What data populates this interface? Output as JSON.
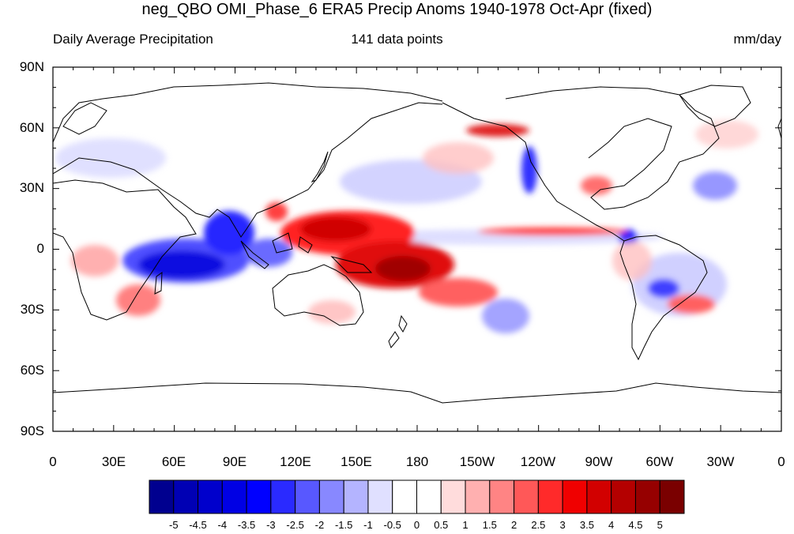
{
  "title": "neg_QBO OMI_Phase_6 ERA5 Precip Anoms 1940-1978 Oct-Apr (fixed)",
  "subtitle_left": "Daily Average Precipitation",
  "subtitle_center": "141 data points",
  "subtitle_right": "mm/day",
  "lat_labels": [
    "90N",
    "60N",
    "30N",
    "0",
    "30S",
    "60S",
    "90S"
  ],
  "lon_labels": [
    "0",
    "30E",
    "60E",
    "90E",
    "120E",
    "150E",
    "180",
    "150W",
    "120W",
    "90W",
    "60W",
    "30W",
    "0"
  ],
  "colorbar": {
    "labels": [
      "-5",
      "-4.5",
      "-4",
      "-3.5",
      "-3",
      "-2.5",
      "-2",
      "-1.5",
      "-1",
      "-0.5",
      "0",
      "0.5",
      "1",
      "1.5",
      "2",
      "2.5",
      "3",
      "3.5",
      "4",
      "4.5",
      "5"
    ],
    "colors": [
      "#00008f",
      "#0000b4",
      "#0000cc",
      "#0000e4",
      "#0000ff",
      "#2a2aff",
      "#5858ff",
      "#8888ff",
      "#b4b4ff",
      "#e0e0ff",
      "#ffffff",
      "#ffffff",
      "#ffdcdc",
      "#ffb0b0",
      "#ff8484",
      "#ff5858",
      "#ff2a2a",
      "#f00000",
      "#d20000",
      "#b40000",
      "#960000",
      "#7a0000"
    ]
  },
  "colors": {
    "negative": "#0000ff",
    "positive": "#e00000",
    "coastline": "#000000"
  }
}
